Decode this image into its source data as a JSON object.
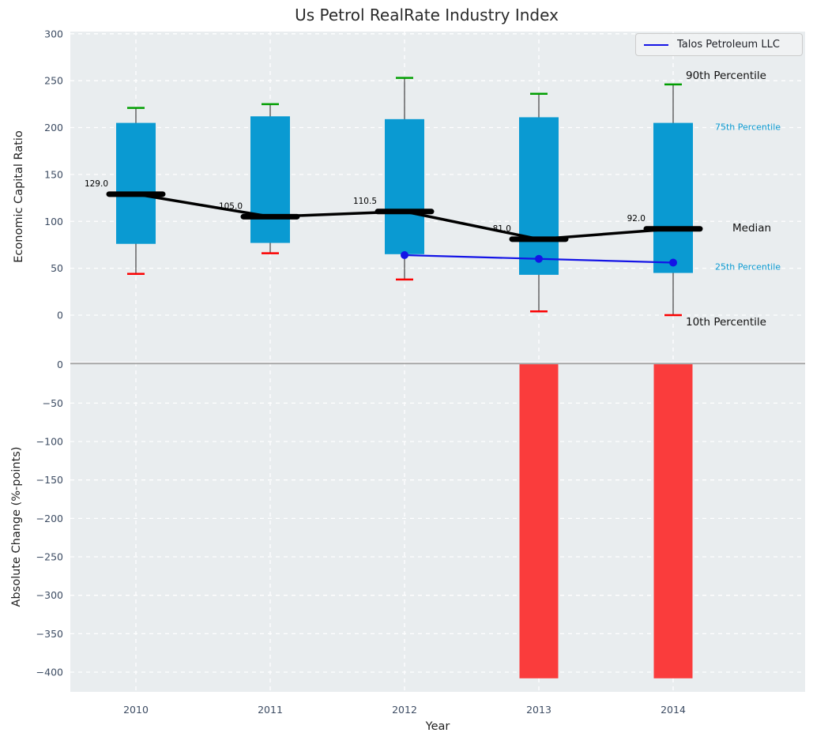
{
  "title": "Us Petrol RealRate Industry Index",
  "legend": {
    "label": "Talos Petroleum LLC"
  },
  "x_axis": {
    "label": "Year",
    "ticks": [
      "2010",
      "2011",
      "2012",
      "2013",
      "2014"
    ]
  },
  "right_labels": [
    "90th Percentile",
    "75th Percentile",
    "Median",
    "25th Percentile",
    "10th Percentile"
  ],
  "colors": {
    "plot_bg": "#e9edef",
    "grid": "#ffffff",
    "box_fill": "#0a9ad2",
    "whisker": "#404040",
    "cap_green": "#009e00",
    "cap_red": "#fb0000",
    "median": "#000000",
    "talos_line": "#1414e6",
    "bar_fill": "#fa3c3c",
    "zero_line": "#a8a8a8",
    "tick_text": "#3d4c63",
    "annotation_text": "#000000",
    "percentile_label_cyan": "#0a9ad2"
  },
  "chart_data": [
    {
      "type": "box",
      "panel": "top",
      "title": "Us Petrol RealRate Industry Index",
      "ylabel": "Economic Capital Ratio",
      "xlabel": "Year",
      "categories": [
        "2010",
        "2011",
        "2012",
        "2013",
        "2014"
      ],
      "yticks": [
        0,
        50,
        100,
        150,
        200,
        250,
        300
      ],
      "ylim": [
        -50,
        302
      ],
      "grid": true,
      "legend_position": "upper right",
      "series": [
        {
          "name": "90th Percentile",
          "values": [
            221,
            225,
            253,
            236,
            246
          ]
        },
        {
          "name": "75th Percentile",
          "values": [
            205,
            212,
            209,
            211,
            205
          ]
        },
        {
          "name": "Median",
          "values": [
            129.0,
            105.0,
            110.5,
            81.0,
            92.0
          ]
        },
        {
          "name": "25th Percentile",
          "values": [
            76,
            77,
            65,
            43,
            45
          ]
        },
        {
          "name": "10th Percentile",
          "values": [
            44,
            66,
            38,
            4,
            0
          ]
        },
        {
          "name": "Talos Petroleum LLC",
          "values": [
            null,
            null,
            64,
            60,
            56
          ]
        }
      ],
      "median_annotations": [
        "129.0",
        "105.0",
        "110.5",
        "81.0",
        "92.0"
      ]
    },
    {
      "type": "bar",
      "panel": "bottom",
      "ylabel": "Absolute Change (%-points)",
      "categories": [
        "2010",
        "2011",
        "2012",
        "2013",
        "2014"
      ],
      "values": [
        null,
        null,
        null,
        -408,
        -408
      ],
      "yticks": [
        0,
        -50,
        -100,
        -150,
        -200,
        -250,
        -300,
        -350,
        -400
      ],
      "ylim": [
        -426,
        2
      ],
      "grid": true
    }
  ]
}
